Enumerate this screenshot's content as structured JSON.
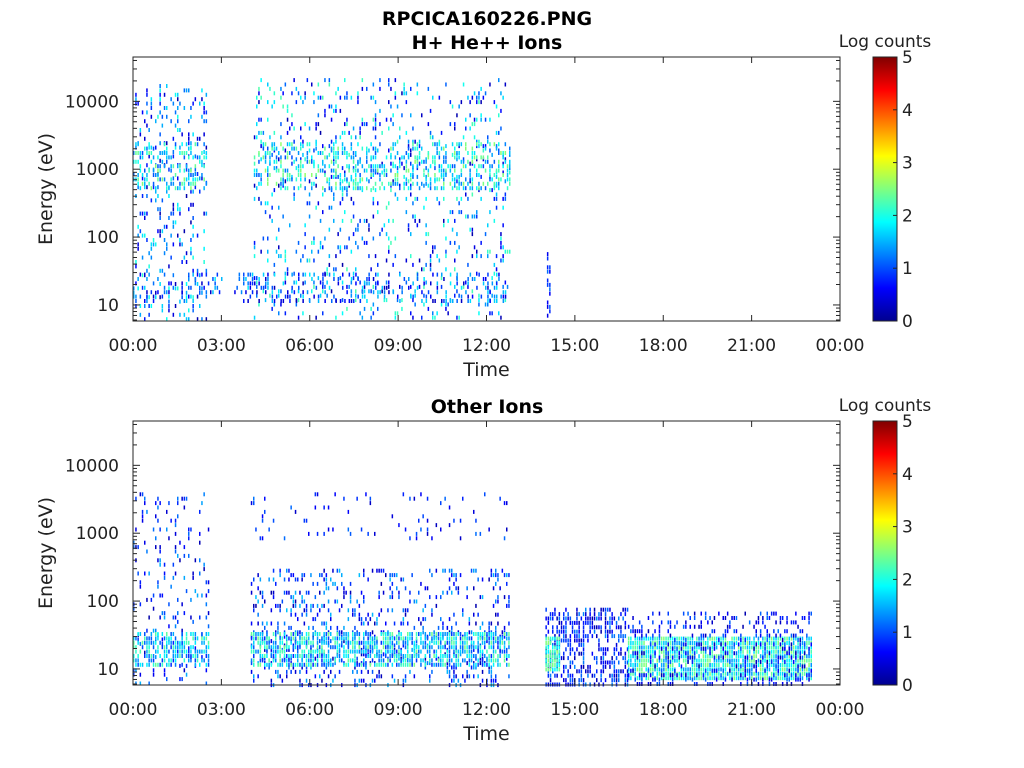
{
  "figure": {
    "title": "RPCICA160226.PNG"
  },
  "chart_data": [
    {
      "type": "heatmap",
      "title": "H+ He++ Ions",
      "xlabel": "Time",
      "ylabel": "Energy (eV)",
      "x_ticks": [
        "00:00",
        "03:00",
        "06:00",
        "09:00",
        "12:00",
        "15:00",
        "18:00",
        "21:00",
        "00:00"
      ],
      "y_ticks": [
        "10",
        "100",
        "1000",
        "10000"
      ],
      "y_tick_values": [
        10,
        100,
        1000,
        10000
      ],
      "xlim_hours": [
        0,
        24
      ],
      "ylim_eV": [
        5.8,
        45000
      ],
      "y_scale": "log",
      "colorbar": {
        "label": "Log counts",
        "ticks": [
          "0",
          "1",
          "2",
          "3",
          "4",
          "5"
        ],
        "range": [
          0,
          5
        ],
        "colormap": "jet"
      },
      "data_intervals_hours": [
        [
          0.0,
          2.5
        ],
        [
          4.1,
          12.8
        ],
        [
          14.05,
          14.15
        ]
      ],
      "regions": [
        {
          "t": [
            0.0,
            2.5
          ],
          "e": [
            6,
            18000
          ],
          "density": 0.15,
          "level": [
            0.2,
            2.1
          ]
        },
        {
          "t": [
            4.1,
            12.8
          ],
          "e": [
            6,
            22000
          ],
          "density": 0.12,
          "level": [
            0.2,
            2.3
          ]
        },
        {
          "t": [
            4.1,
            12.8
          ],
          "e": [
            500,
            2500
          ],
          "density": 0.35,
          "level": [
            1.0,
            2.6
          ]
        },
        {
          "t": [
            0.0,
            2.5
          ],
          "e": [
            500,
            2500
          ],
          "density": 0.35,
          "level": [
            1.0,
            2.6
          ]
        },
        {
          "t": [
            0.0,
            12.8
          ],
          "e": [
            12,
            30
          ],
          "density": 0.25,
          "level": [
            0.3,
            1.8
          ]
        },
        {
          "t": [
            14.05,
            14.15
          ],
          "e": [
            7,
            60
          ],
          "density": 0.5,
          "level": [
            0.5,
            1.2
          ]
        }
      ]
    },
    {
      "type": "heatmap",
      "title": "Other Ions",
      "xlabel": "Time",
      "ylabel": "Energy (eV)",
      "x_ticks": [
        "00:00",
        "03:00",
        "06:00",
        "09:00",
        "12:00",
        "15:00",
        "18:00",
        "21:00",
        "00:00"
      ],
      "y_ticks": [
        "10",
        "100",
        "1000",
        "10000"
      ],
      "y_tick_values": [
        10,
        100,
        1000,
        10000
      ],
      "xlim_hours": [
        0,
        24
      ],
      "ylim_eV": [
        5.8,
        45000
      ],
      "y_scale": "log",
      "colorbar": {
        "label": "Log counts",
        "ticks": [
          "0",
          "1",
          "2",
          "3",
          "4",
          "5"
        ],
        "range": [
          0,
          5
        ],
        "colormap": "jet"
      },
      "data_intervals_hours": [
        [
          0.0,
          2.6
        ],
        [
          4.0,
          12.8
        ],
        [
          14.0,
          23.0
        ]
      ],
      "regions": [
        {
          "t": [
            0.0,
            2.6
          ],
          "e": [
            6,
            4000
          ],
          "density": 0.1,
          "level": [
            0.2,
            1.5
          ]
        },
        {
          "t": [
            0.0,
            2.6
          ],
          "e": [
            12,
            35
          ],
          "density": 0.6,
          "level": [
            0.8,
            2.4
          ]
        },
        {
          "t": [
            4.0,
            12.8
          ],
          "e": [
            6,
            300
          ],
          "density": 0.2,
          "level": [
            0.2,
            1.6
          ]
        },
        {
          "t": [
            4.0,
            12.8
          ],
          "e": [
            12,
            35
          ],
          "density": 0.7,
          "level": [
            0.8,
            2.5
          ]
        },
        {
          "t": [
            4.0,
            12.8
          ],
          "e": [
            800,
            4000
          ],
          "density": 0.05,
          "level": [
            0.3,
            1.2
          ]
        },
        {
          "t": [
            14.0,
            16.8
          ],
          "e": [
            6,
            80
          ],
          "density": 0.5,
          "level": [
            0.2,
            1.3
          ]
        },
        {
          "t": [
            14.0,
            14.5
          ],
          "e": [
            10,
            30
          ],
          "density": 0.9,
          "level": [
            1.8,
            2.6
          ]
        },
        {
          "t": [
            16.8,
            23.0
          ],
          "e": [
            7,
            30
          ],
          "density": 0.9,
          "level": [
            1.3,
            2.6
          ]
        },
        {
          "t": [
            16.8,
            23.0
          ],
          "e": [
            6,
            70
          ],
          "density": 0.25,
          "level": [
            0.2,
            1.2
          ]
        }
      ]
    }
  ]
}
